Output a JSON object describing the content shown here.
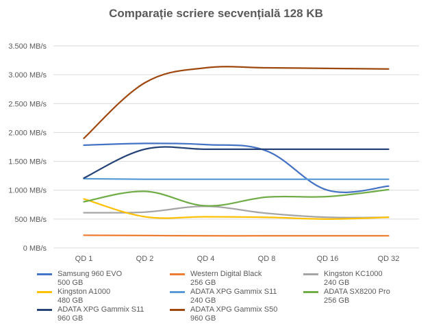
{
  "chart_data": {
    "type": "line",
    "title": "Comparație scriere secvențială 128 KB",
    "xlabel": "",
    "ylabel": "",
    "categories": [
      "QD 1",
      "QD 2",
      "QD 4",
      "QD 8",
      "QD 16",
      "QD 32"
    ],
    "ylim": [
      0,
      3500
    ],
    "yticks": [
      0,
      500,
      1000,
      1500,
      2000,
      2500,
      3000,
      3500
    ],
    "ytick_labels": [
      "0 MB/s",
      "500 MB/s",
      "1.000 MB/s",
      "1.500 MB/s",
      "2.000 MB/s",
      "2.500 MB/s",
      "3.000 MB/s",
      "3.500 MB/s"
    ],
    "grid": true,
    "legend_position": "bottom",
    "series": [
      {
        "name": "Samsung 960 EVO",
        "sub": "500 GB",
        "color": "#4472C4",
        "values": [
          1780,
          1810,
          1790,
          1680,
          1000,
          1070
        ]
      },
      {
        "name": "Western Digital Black",
        "sub": "256 GB",
        "color": "#ED7D31",
        "values": [
          220,
          215,
          210,
          210,
          210,
          210
        ]
      },
      {
        "name": "Kingston KC1000",
        "sub": "240 GB",
        "color": "#A5A5A5",
        "values": [
          610,
          620,
          720,
          600,
          530,
          530
        ]
      },
      {
        "name": "Kingston A1000",
        "sub": "480 GB",
        "color": "#FFC000",
        "values": [
          850,
          540,
          540,
          530,
          500,
          530
        ]
      },
      {
        "name": "ADATA XPG Gammix S11",
        "sub": "240 GB",
        "color": "#5B9BD5",
        "values": [
          1200,
          1190,
          1190,
          1190,
          1190,
          1190
        ]
      },
      {
        "name": "ADATA SX8200 Pro",
        "sub": "256 GB",
        "color": "#70AD47",
        "values": [
          800,
          980,
          730,
          880,
          890,
          1010
        ]
      },
      {
        "name": "ADATA XPG Gammix S11",
        "sub": "960 GB",
        "color": "#264478",
        "values": [
          1210,
          1710,
          1710,
          1710,
          1710,
          1710
        ]
      },
      {
        "name": "ADATA XPG Gammix S50",
        "sub": "960 GB",
        "color": "#9E480E",
        "values": [
          1900,
          2860,
          3120,
          3120,
          3110,
          3100
        ]
      }
    ]
  }
}
